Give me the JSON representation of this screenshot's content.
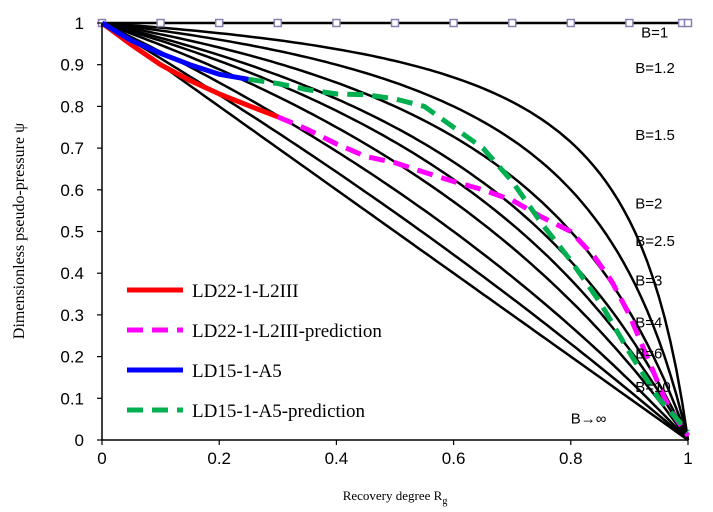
{
  "chart_data": {
    "type": "line",
    "title": "",
    "xlabel": "Recovery degree R",
    "xlabel_sub": "g",
    "ylabel": "Dimensionless pseudo-pressure ψ",
    "xlim": [
      0,
      1
    ],
    "ylim": [
      0,
      1
    ],
    "x_ticks": [
      "0",
      "0.2",
      "0.4",
      "0.6",
      "0.8",
      "1"
    ],
    "y_ticks": [
      "0",
      "0.1",
      "0.2",
      "0.3",
      "0.4",
      "0.5",
      "0.6",
      "0.7",
      "0.8",
      "0.9",
      "1"
    ],
    "grid": false,
    "legend_position": "bottom-left",
    "curve_family": [
      {
        "label": "B=1",
        "B": 1,
        "label_x": 0.92,
        "label_y": 0.965
      },
      {
        "label": "B=1.2",
        "B": 1.2,
        "label_x": 0.91,
        "label_y": 0.88
      },
      {
        "label": "B=1.5",
        "B": 1.5,
        "label_x": 0.91,
        "label_y": 0.72
      },
      {
        "label": "B=2",
        "B": 2,
        "label_x": 0.91,
        "label_y": 0.555
      },
      {
        "label": "B=2.5",
        "B": 2.5,
        "label_x": 0.91,
        "label_y": 0.465
      },
      {
        "label": "B=3",
        "B": 3,
        "label_x": 0.91,
        "label_y": 0.37
      },
      {
        "label": "B=4",
        "B": 4,
        "label_x": 0.91,
        "label_y": 0.27
      },
      {
        "label": "B=6",
        "B": 6,
        "label_x": 0.91,
        "label_y": 0.195
      },
      {
        "label": "B=10",
        "B": 10,
        "label_x": 0.91,
        "label_y": 0.115
      },
      {
        "label": "B→∞",
        "B": null,
        "label_x": 0.8,
        "label_y": 0.04
      }
    ],
    "top_markers": {
      "x": [
        0,
        0.1,
        0.2,
        0.3,
        0.4,
        0.5,
        0.6,
        0.7,
        0.8,
        0.9,
        0.99,
        1.0
      ],
      "y": 1,
      "color": "#8a7fb0"
    },
    "series": [
      {
        "name": "LD22-1-L2III",
        "color": "#ff0000",
        "style": "solid",
        "x": [
          0,
          0.05,
          0.1,
          0.15,
          0.2,
          0.25,
          0.3
        ],
        "y": [
          1,
          0.948,
          0.9,
          0.862,
          0.83,
          0.802,
          0.775
        ]
      },
      {
        "name": "LD22-1-L2III-prediction",
        "color": "#ff00ff",
        "style": "dashed",
        "x": [
          0.3,
          0.35,
          0.4,
          0.45,
          0.5,
          0.55,
          0.6,
          0.65,
          0.7,
          0.75,
          0.8,
          0.84,
          0.87,
          0.9,
          0.93,
          0.96,
          0.98,
          1.0
        ],
        "y": [
          0.775,
          0.745,
          0.71,
          0.68,
          0.665,
          0.642,
          0.62,
          0.6,
          0.575,
          0.535,
          0.5,
          0.44,
          0.38,
          0.3,
          0.2,
          0.1,
          0.05,
          0.01
        ]
      },
      {
        "name": "LD15-1-A5",
        "color": "#0000ff",
        "style": "solid",
        "x": [
          0,
          0.05,
          0.1,
          0.15,
          0.2,
          0.25
        ],
        "y": [
          1,
          0.958,
          0.927,
          0.9,
          0.877,
          0.865
        ]
      },
      {
        "name": "LD15-1-A5-prediction",
        "color": "#00b050",
        "style": "dashed",
        "x": [
          0.25,
          0.3,
          0.35,
          0.4,
          0.45,
          0.5,
          0.55,
          0.6,
          0.65,
          0.7,
          0.75,
          0.8,
          0.85,
          0.9,
          0.95,
          1.0
        ],
        "y": [
          0.865,
          0.855,
          0.84,
          0.83,
          0.828,
          0.818,
          0.8,
          0.75,
          0.7,
          0.62,
          0.52,
          0.43,
          0.33,
          0.21,
          0.1,
          0.02
        ]
      }
    ]
  }
}
